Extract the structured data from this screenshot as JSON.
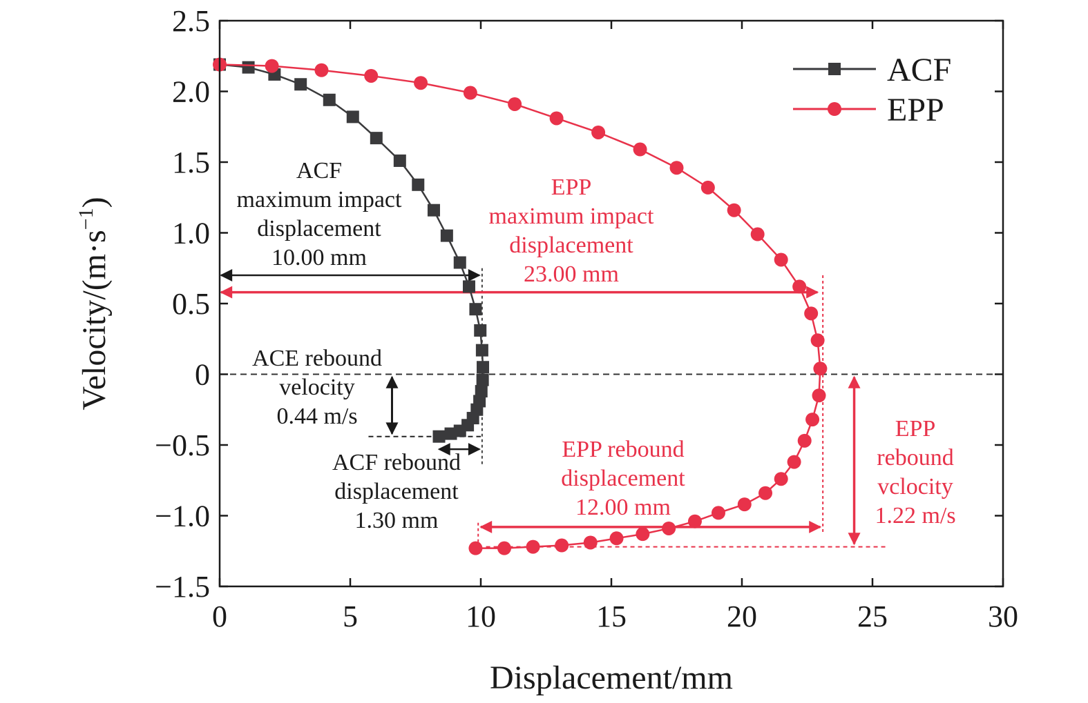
{
  "chart_data": {
    "type": "line",
    "xlabel": "Displacement/mm",
    "ylabel": "Velocity/(m·s",
    "ylabel_superscript": "−1",
    "ylabel_close": ")",
    "xlim": [
      0,
      30
    ],
    "ylim": [
      -1.5,
      2.5
    ],
    "x_ticks": [
      0,
      5,
      10,
      15,
      20,
      25,
      30
    ],
    "x_tick_labels": [
      "0",
      "5",
      "10",
      "15",
      "20",
      "25",
      "30"
    ],
    "y_ticks": [
      2.5,
      2.0,
      1.5,
      1.0,
      0.5,
      0,
      -0.5,
      -1.0,
      -1.5
    ],
    "y_tick_labels": [
      "2.5",
      "2.0",
      "1.5",
      "1.0",
      "0.5",
      "0",
      "−0.5",
      "−1.0",
      "−1.5"
    ],
    "grid": false,
    "legend_position": "top-right",
    "series": [
      {
        "name": "ACF",
        "color": "#3a3a3c",
        "marker": "square",
        "points": [
          [
            0,
            2.19
          ],
          [
            1.1,
            2.17
          ],
          [
            2.1,
            2.12
          ],
          [
            3.1,
            2.05
          ],
          [
            4.2,
            1.94
          ],
          [
            5.1,
            1.82
          ],
          [
            6.0,
            1.67
          ],
          [
            6.9,
            1.51
          ],
          [
            7.6,
            1.34
          ],
          [
            8.2,
            1.16
          ],
          [
            8.7,
            0.98
          ],
          [
            9.2,
            0.79
          ],
          [
            9.55,
            0.62
          ],
          [
            9.8,
            0.46
          ],
          [
            9.98,
            0.31
          ],
          [
            10.05,
            0.17
          ],
          [
            10.08,
            0.05
          ],
          [
            10.07,
            -0.04
          ],
          [
            10.02,
            -0.12
          ],
          [
            9.95,
            -0.19
          ],
          [
            9.85,
            -0.25
          ],
          [
            9.7,
            -0.31
          ],
          [
            9.5,
            -0.36
          ],
          [
            9.2,
            -0.4
          ],
          [
            8.85,
            -0.42
          ],
          [
            8.4,
            -0.44
          ]
        ]
      },
      {
        "name": "EPP",
        "color": "#e8324a",
        "marker": "circle",
        "points": [
          [
            0,
            2.19
          ],
          [
            2.0,
            2.18
          ],
          [
            3.9,
            2.15
          ],
          [
            5.8,
            2.11
          ],
          [
            7.7,
            2.06
          ],
          [
            9.6,
            1.99
          ],
          [
            11.3,
            1.91
          ],
          [
            12.9,
            1.81
          ],
          [
            14.5,
            1.71
          ],
          [
            16.1,
            1.59
          ],
          [
            17.5,
            1.46
          ],
          [
            18.7,
            1.32
          ],
          [
            19.7,
            1.16
          ],
          [
            20.6,
            0.99
          ],
          [
            21.5,
            0.81
          ],
          [
            22.2,
            0.62
          ],
          [
            22.65,
            0.43
          ],
          [
            22.9,
            0.24
          ],
          [
            23.0,
            0.04
          ],
          [
            22.95,
            -0.15
          ],
          [
            22.7,
            -0.32
          ],
          [
            22.4,
            -0.47
          ],
          [
            22.0,
            -0.62
          ],
          [
            21.5,
            -0.74
          ],
          [
            20.9,
            -0.84
          ],
          [
            20.1,
            -0.92
          ],
          [
            19.1,
            -0.98
          ],
          [
            18.2,
            -1.04
          ],
          [
            17.2,
            -1.09
          ],
          [
            16.2,
            -1.13
          ],
          [
            15.2,
            -1.16
          ],
          [
            14.2,
            -1.19
          ],
          [
            13.1,
            -1.21
          ],
          [
            12.0,
            -1.22
          ],
          [
            10.9,
            -1.23
          ],
          [
            9.8,
            -1.23
          ]
        ]
      }
    ],
    "annotations": {
      "acf_max": {
        "lines": [
          "ACF",
          "maximum impact",
          "displacement",
          "10.00 mm"
        ],
        "color": "#1a1a1a"
      },
      "epp_max": {
        "lines": [
          "EPP",
          "maximum impact",
          "displacement",
          "23.00 mm"
        ],
        "color": "#e8324a"
      },
      "acf_rebound_velocity": {
        "lines": [
          "ACE rebound",
          "velocity",
          "0.44 m/s"
        ],
        "color": "#1a1a1a"
      },
      "acf_rebound_displacement": {
        "lines": [
          "ACF rebound",
          "displacement",
          "1.30 mm"
        ],
        "color": "#1a1a1a"
      },
      "epp_rebound_displacement": {
        "lines": [
          "EPP rebound",
          "displacement",
          "12.00 mm"
        ],
        "color": "#e8324a"
      },
      "epp_rebound_velocity": {
        "lines": [
          "EPP",
          "rebound",
          "vclocity",
          "1.22 m/s"
        ],
        "color": "#e8324a"
      }
    }
  }
}
